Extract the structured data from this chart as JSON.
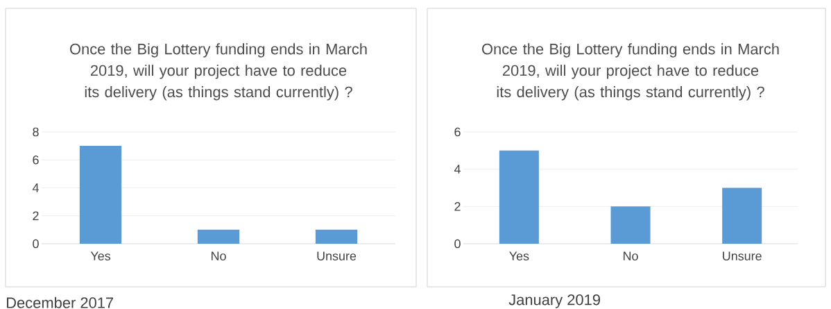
{
  "chart_data": [
    {
      "type": "bar",
      "title": "Once the Big Lottery funding ends in March 2019, will your project have to reduce its delivery (as things stand currently) ?",
      "categories": [
        "Yes",
        "No",
        "Unsure"
      ],
      "values": [
        7,
        1,
        1
      ],
      "color": "#5b9bd5",
      "ylim": [
        0,
        8
      ],
      "yticks": [
        0,
        2,
        4,
        6,
        8
      ],
      "grid": "y",
      "annotations": [
        "December 2017"
      ]
    },
    {
      "type": "bar",
      "title": "Once the Big Lottery funding ends in March 2019, will your project have to reduce its delivery (as things stand currently) ?",
      "categories": [
        "Yes",
        "No",
        "Unsure"
      ],
      "values": [
        5,
        2,
        3
      ],
      "color": "#5b9bd5",
      "ylim": [
        0,
        6
      ],
      "yticks": [
        0,
        2,
        4,
        6
      ],
      "grid": "y",
      "annotations": [
        "January 2019"
      ]
    }
  ]
}
